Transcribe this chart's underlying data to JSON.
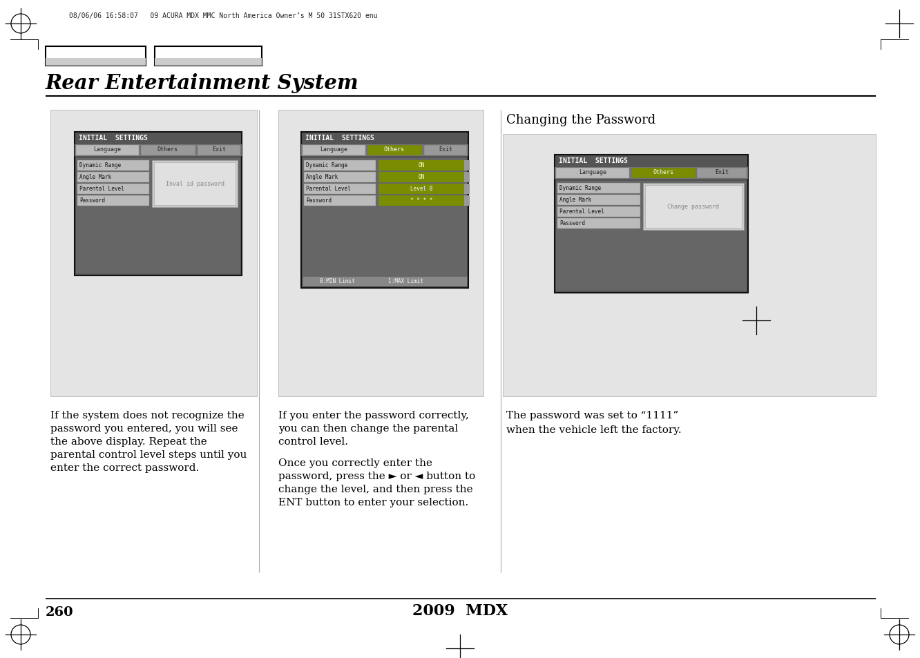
{
  "page_number": "260",
  "footer_text": "2009  MDX",
  "header_text": "08/06/06 16:58:07   09 ACURA MDX MMC North America Owner’s M 50 31STX620 enu",
  "title": "Rear Entertainment System",
  "bg_color": "#ffffff",
  "panel_bg": "#e4e4e4",
  "screen_dark": "#4a4a4a",
  "screen_mid": "#777777",
  "screen_light": "#bbbbbb",
  "green_hl": "#7a8c00",
  "tab_light": "#cccccc",
  "tab_mid": "#999999",
  "col1_text": [
    "If the system does not recognize the",
    "password you entered, you will see",
    "the above display. Repeat the",
    "parental control level steps until you",
    "enter the correct password."
  ],
  "col2_para1": [
    "If you enter the password correctly,",
    "you can then change the parental",
    "control level."
  ],
  "col2_para2": [
    "Once you correctly enter the",
    "password, press the ► or ◄ button to",
    "change the level, and then press the",
    "ENT button to enter your selection."
  ],
  "col3_title": "Changing the Password",
  "col3_text": [
    "The password was set to “1111”",
    "when the vehicle left the factory."
  ],
  "menu_items": [
    "Dynamic Range",
    "Angle Mark",
    "Parental Level",
    "Password"
  ],
  "divider_color": "#999999"
}
